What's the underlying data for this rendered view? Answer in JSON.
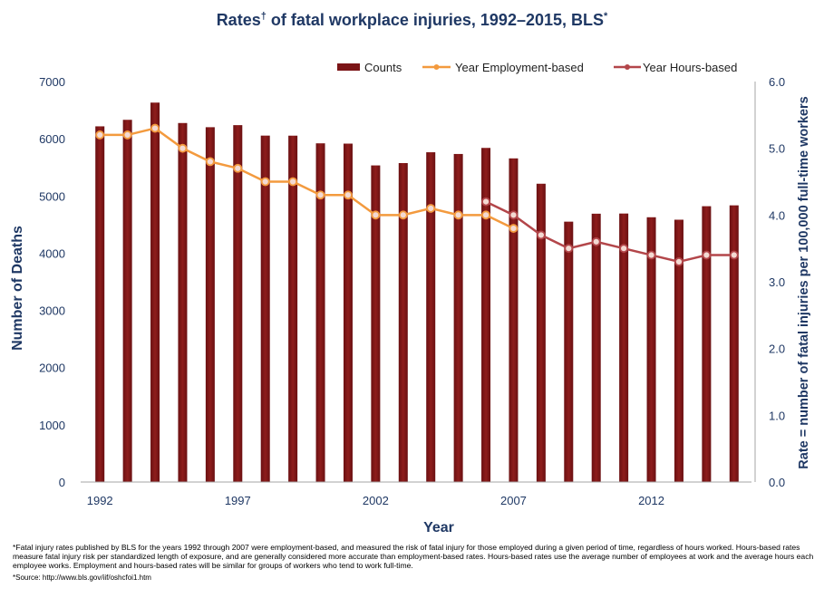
{
  "title": {
    "part1": "Rates",
    "dagger": "†",
    "part2": " of fatal workplace injuries, 1992–2015, BLS",
    "star": "*"
  },
  "legend": {
    "counts": "Counts",
    "employment": "Year Employment-based",
    "hours": "Year Hours-based"
  },
  "colors": {
    "bar": "#7b1416",
    "bar_light": "#a32a24",
    "employment_line": "#f39a3e",
    "hours_line": "#b3464a",
    "axis_text": "#1f3864"
  },
  "footnotes": {
    "line1": "*Fatal injury rates published by BLS for the years 1992 through 2007 were employment-based, and measured the risk of fatal injury for those employed during a given period of time, regardless of hours worked. Hours-based rates measure fatal injury risk per standardized length of exposure, and are generally considered more accurate than employment-based rates. Hours-based rates use the average number of employees at work and the average hours each employee works. Employment and hours-based rates will be similar for groups of workers who tend to work full-time.",
    "source": "*Source: http://www.bls.gov/iif/oshcfoi1.htm"
  },
  "chart_data": {
    "type": "bar",
    "xlabel": "Year",
    "ylabel": "Number of Deaths",
    "y2label": "Rate = number of fatal injuries per 100,000 full-time workers",
    "ylim": [
      0,
      7000
    ],
    "y2lim": [
      0,
      6.0
    ],
    "yticks": [
      "0",
      "1000",
      "2000",
      "3000",
      "4000",
      "5000",
      "6000",
      "7000"
    ],
    "y2ticks": [
      "0.0",
      "1.0",
      "2.0",
      "3.0",
      "4.0",
      "5.0",
      "6.0"
    ],
    "xticks": [
      "1992",
      "1997",
      "2002",
      "2007",
      "2012"
    ],
    "legend_position": "top-right",
    "grid": false,
    "categories": [
      1992,
      1993,
      1994,
      1995,
      1996,
      1997,
      1998,
      1999,
      2000,
      2001,
      2002,
      2003,
      2004,
      2005,
      2006,
      2007,
      2008,
      2009,
      2010,
      2011,
      2012,
      2013,
      2014,
      2015
    ],
    "series": [
      {
        "name": "Counts",
        "type": "bar",
        "axis": "left",
        "values": [
          6217,
          6331,
          6632,
          6275,
          6202,
          6238,
          6055,
          6054,
          5920,
          5915,
          5534,
          5575,
          5764,
          5734,
          5840,
          5657,
          5214,
          4551,
          4690,
          4693,
          4628,
          4585,
          4821,
          4836
        ]
      },
      {
        "name": "Year Employment-based",
        "type": "line",
        "axis": "right",
        "values": [
          5.2,
          5.2,
          5.3,
          5.0,
          4.8,
          4.7,
          4.5,
          4.5,
          4.3,
          4.3,
          4.0,
          4.0,
          4.1,
          4.0,
          4.0,
          3.8,
          null,
          null,
          null,
          null,
          null,
          null,
          null,
          null
        ]
      },
      {
        "name": "Year Hours-based",
        "type": "line",
        "axis": "right",
        "values": [
          null,
          null,
          null,
          null,
          null,
          null,
          null,
          null,
          null,
          null,
          null,
          null,
          null,
          null,
          4.2,
          4.0,
          3.7,
          3.5,
          3.6,
          3.5,
          3.4,
          3.3,
          3.4,
          3.4
        ]
      }
    ]
  }
}
